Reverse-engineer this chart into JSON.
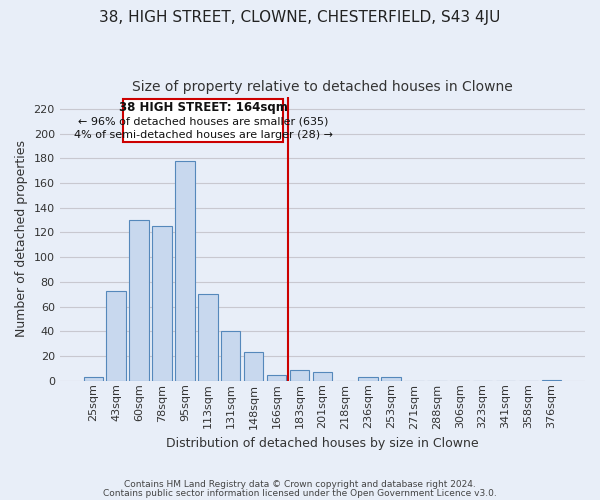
{
  "title": "38, HIGH STREET, CLOWNE, CHESTERFIELD, S43 4JU",
  "subtitle": "Size of property relative to detached houses in Clowne",
  "xlabel": "Distribution of detached houses by size in Clowne",
  "ylabel": "Number of detached properties",
  "bar_labels": [
    "25sqm",
    "43sqm",
    "60sqm",
    "78sqm",
    "95sqm",
    "113sqm",
    "131sqm",
    "148sqm",
    "166sqm",
    "183sqm",
    "201sqm",
    "218sqm",
    "236sqm",
    "253sqm",
    "271sqm",
    "288sqm",
    "306sqm",
    "323sqm",
    "341sqm",
    "358sqm",
    "376sqm"
  ],
  "bar_values": [
    3,
    73,
    130,
    125,
    178,
    70,
    40,
    23,
    5,
    9,
    7,
    0,
    3,
    3,
    0,
    0,
    0,
    0,
    0,
    0,
    1
  ],
  "bar_fill_color": "#c8d8ee",
  "bar_edge_color": "#5588bb",
  "vline_x": 8,
  "vline_color": "#cc0000",
  "annotation_title": "38 HIGH STREET: 164sqm",
  "annotation_line1": "← 96% of detached houses are smaller (635)",
  "annotation_line2": "4% of semi-detached houses are larger (28) →",
  "annotation_box_facecolor": "#ffffff",
  "annotation_box_edgecolor": "#cc0000",
  "footer1": "Contains HM Land Registry data © Crown copyright and database right 2024.",
  "footer2": "Contains public sector information licensed under the Open Government Licence v3.0.",
  "ylim": [
    0,
    230
  ],
  "yticks": [
    0,
    20,
    40,
    60,
    80,
    100,
    120,
    140,
    160,
    180,
    200,
    220
  ],
  "background_color": "#e8eef8",
  "plot_bg_color": "#e8eef8",
  "grid_color": "#c8c8d0",
  "title_fontsize": 11,
  "subtitle_fontsize": 10,
  "axis_label_fontsize": 9,
  "tick_fontsize": 8,
  "footer_fontsize": 6.5
}
